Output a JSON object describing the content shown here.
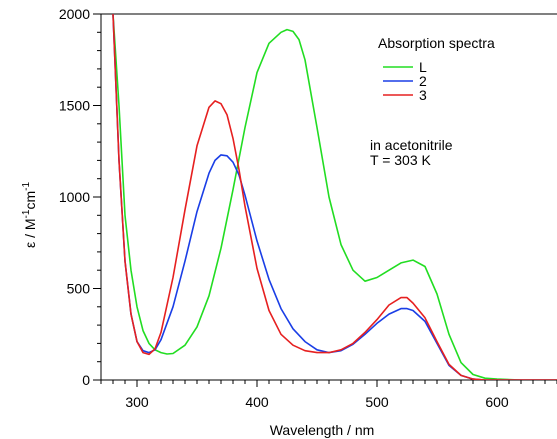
{
  "chart_data": {
    "type": "line",
    "xlabel": "Wavelength  /  nm",
    "ylabel_prefix": "ε  /  M",
    "ylabel_exp1": "-1",
    "ylabel_mid": "cm",
    "ylabel_exp2": "-1",
    "xlim": [
      270,
      650
    ],
    "ylim": [
      0,
      2000
    ],
    "x_major_ticks": [
      300,
      400,
      500,
      600
    ],
    "x_minor_step": 10,
    "y_major_ticks": [
      0,
      500,
      1000,
      1500,
      2000
    ],
    "y_minor_step": 100,
    "grid": false,
    "legend_title": "Absorption spectra",
    "legend_position": "top-right",
    "annotation_lines": [
      "in acetonitrile",
      "T = 303 K"
    ],
    "series": [
      {
        "name": "L",
        "color": "#22dd22",
        "x": [
          280,
          285,
          290,
          295,
          300,
          305,
          310,
          315,
          320,
          325,
          330,
          340,
          350,
          360,
          370,
          380,
          390,
          400,
          410,
          420,
          425,
          430,
          435,
          440,
          450,
          460,
          470,
          480,
          490,
          500,
          510,
          520,
          530,
          540,
          550,
          560,
          570,
          580,
          590,
          600,
          620,
          650
        ],
        "y": [
          2000,
          1500,
          900,
          600,
          400,
          270,
          200,
          165,
          150,
          142,
          145,
          190,
          290,
          460,
          720,
          1040,
          1380,
          1680,
          1840,
          1900,
          1915,
          1905,
          1860,
          1750,
          1380,
          1000,
          740,
          600,
          540,
          560,
          600,
          640,
          655,
          620,
          470,
          250,
          95,
          30,
          10,
          5,
          0,
          0
        ]
      },
      {
        "name": "2",
        "color": "#1a3ee6",
        "x": [
          280,
          285,
          290,
          295,
          300,
          305,
          310,
          315,
          320,
          330,
          340,
          350,
          360,
          365,
          370,
          375,
          380,
          385,
          390,
          400,
          410,
          420,
          430,
          440,
          450,
          460,
          470,
          480,
          490,
          500,
          510,
          520,
          525,
          530,
          540,
          550,
          560,
          570,
          580,
          590,
          600,
          620,
          650
        ],
        "y": [
          2000,
          1200,
          650,
          360,
          210,
          160,
          150,
          165,
          220,
          400,
          650,
          920,
          1130,
          1200,
          1230,
          1225,
          1190,
          1120,
          1010,
          760,
          550,
          390,
          280,
          210,
          165,
          150,
          160,
          195,
          250,
          310,
          360,
          390,
          390,
          380,
          320,
          200,
          80,
          25,
          5,
          0,
          0,
          0,
          0
        ]
      },
      {
        "name": "3",
        "color": "#e62020",
        "x": [
          280,
          285,
          290,
          295,
          300,
          305,
          310,
          315,
          320,
          330,
          340,
          350,
          360,
          365,
          370,
          375,
          380,
          385,
          390,
          400,
          410,
          420,
          430,
          440,
          450,
          460,
          470,
          480,
          490,
          500,
          510,
          520,
          525,
          530,
          540,
          550,
          560,
          570,
          580,
          590,
          600,
          620,
          650
        ],
        "y": [
          2000,
          1200,
          650,
          360,
          210,
          150,
          140,
          170,
          260,
          560,
          930,
          1280,
          1490,
          1525,
          1510,
          1450,
          1320,
          1150,
          950,
          610,
          380,
          250,
          190,
          160,
          150,
          150,
          165,
          200,
          260,
          330,
          410,
          450,
          450,
          420,
          340,
          210,
          85,
          25,
          5,
          0,
          0,
          0,
          0
        ]
      }
    ]
  }
}
